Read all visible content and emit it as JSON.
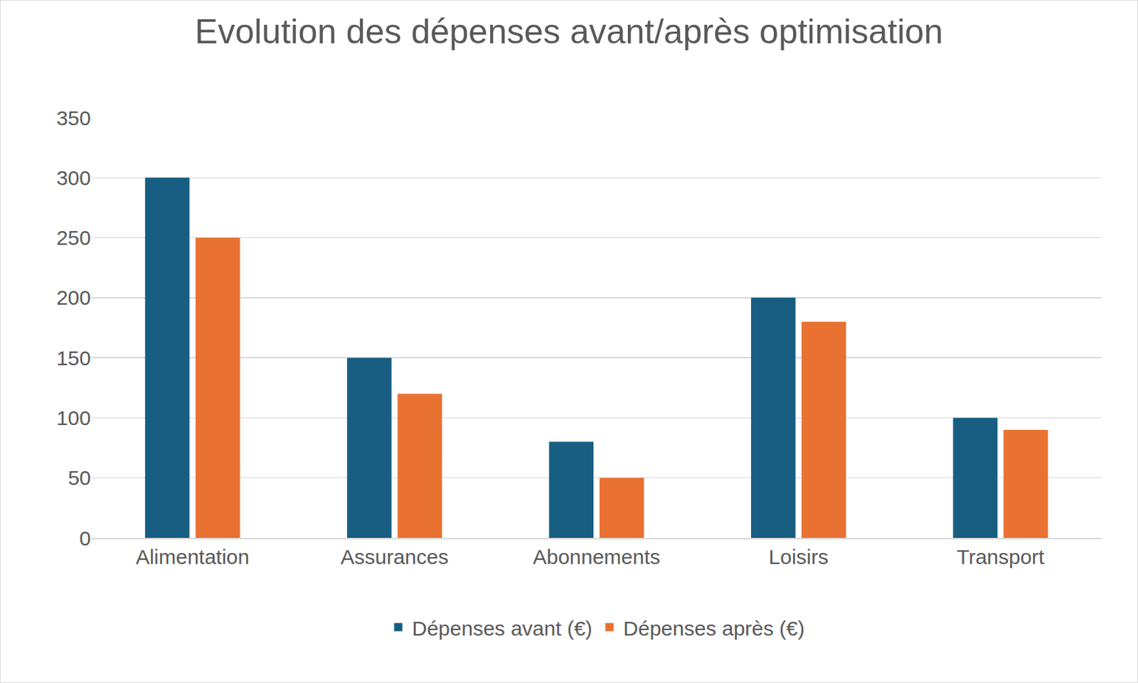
{
  "chart_data": {
    "type": "bar",
    "title": "Evolution des dépenses avant/après optimisation",
    "categories": [
      "Alimentation",
      "Assurances",
      "Abonnements",
      "Loisirs",
      "Transport"
    ],
    "series": [
      {
        "name": "Dépenses avant (€)",
        "color": "#175e82",
        "values": [
          300,
          150,
          80,
          200,
          100
        ]
      },
      {
        "name": "Dépenses après (€)",
        "color": "#e97132",
        "values": [
          250,
          120,
          50,
          180,
          90
        ]
      }
    ],
    "ylim": [
      0,
      350
    ],
    "yticks": [
      0,
      50,
      100,
      150,
      200,
      250,
      300,
      350
    ],
    "grid": true,
    "legend": "bottom"
  }
}
